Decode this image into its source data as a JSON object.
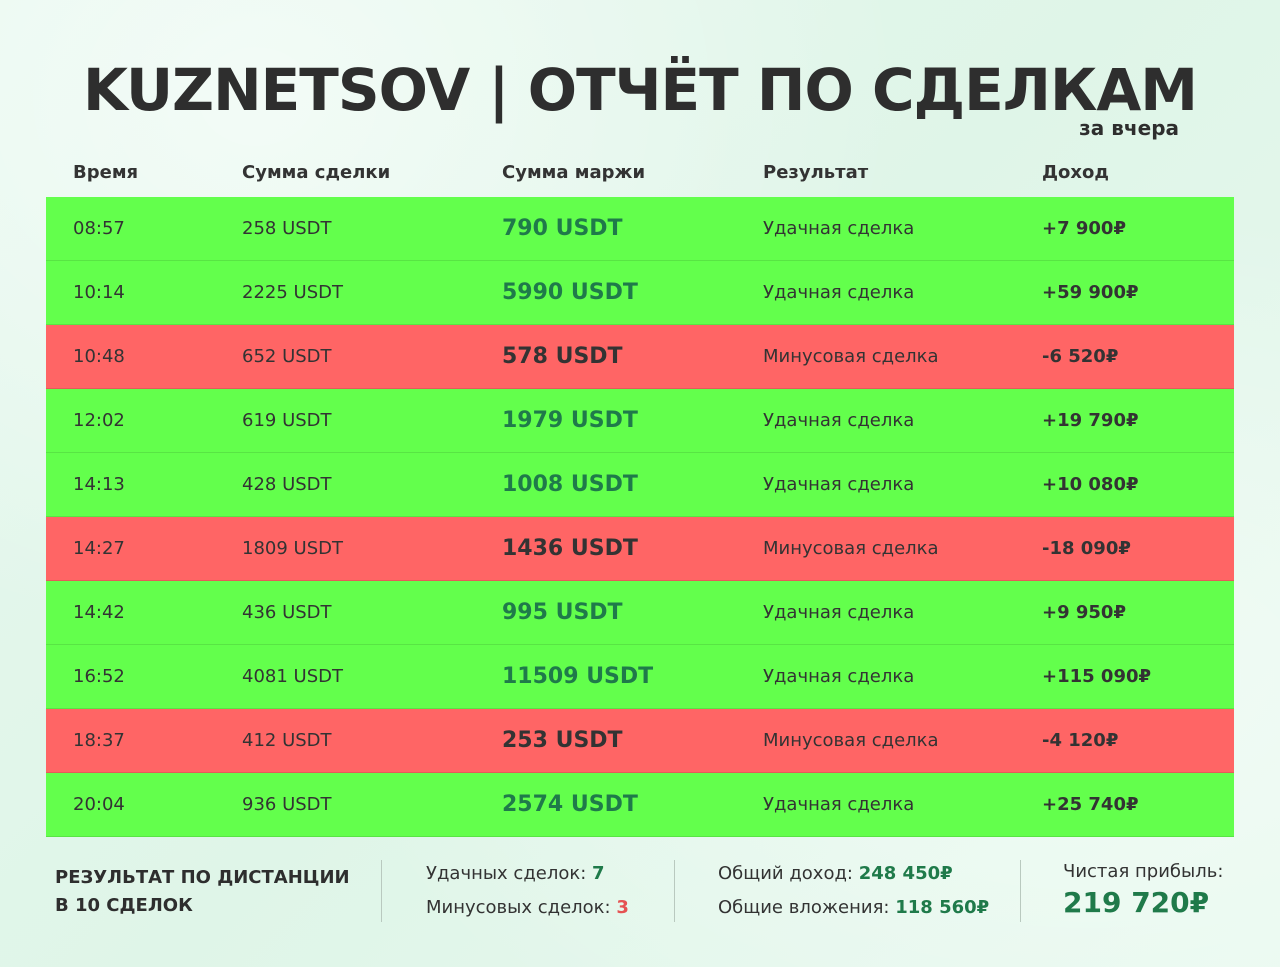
{
  "header": {
    "title": "KUZNETSOV | ОТЧЁТ ПО СДЕЛКАМ",
    "subtitle": "за вчера"
  },
  "table": {
    "columns": [
      "Время",
      "Сумма сделки",
      "Сумма маржи",
      "Результат",
      "Доход"
    ],
    "rows": [
      {
        "status": "win",
        "time": "08:57",
        "deal": "258 USDT",
        "margin": "790 USDT",
        "result": "Удачная сделка",
        "income": "+7 900₽"
      },
      {
        "status": "win",
        "time": "10:14",
        "deal": "2225 USDT",
        "margin": "5990 USDT",
        "result": "Удачная сделка",
        "income": "+59 900₽"
      },
      {
        "status": "loss",
        "time": "10:48",
        "deal": "652 USDT",
        "margin": "578 USDT",
        "result": "Минусовая сделка",
        "income": "-6 520₽"
      },
      {
        "status": "win",
        "time": "12:02",
        "deal": "619 USDT",
        "margin": "1979 USDT",
        "result": "Удачная сделка",
        "income": "+19 790₽"
      },
      {
        "status": "win",
        "time": "14:13",
        "deal": "428 USDT",
        "margin": "1008 USDT",
        "result": "Удачная сделка",
        "income": "+10 080₽"
      },
      {
        "status": "loss",
        "time": "14:27",
        "deal": "1809 USDT",
        "margin": "1436 USDT",
        "result": "Минусовая сделка",
        "income": "-18 090₽"
      },
      {
        "status": "win",
        "time": "14:42",
        "deal": "436 USDT",
        "margin": "995 USDT",
        "result": "Удачная сделка",
        "income": "+9 950₽"
      },
      {
        "status": "win",
        "time": "16:52",
        "deal": "4081 USDT",
        "margin": "11509 USDT",
        "result": "Удачная сделка",
        "income": "+115 090₽"
      },
      {
        "status": "loss",
        "time": "18:37",
        "deal": "412 USDT",
        "margin": "253 USDT",
        "result": "Минусовая сделка",
        "income": "-4 120₽"
      },
      {
        "status": "win",
        "time": "20:04",
        "deal": "936 USDT",
        "margin": "2574 USDT",
        "result": "Удачная сделка",
        "income": "+25 740₽"
      }
    ]
  },
  "summary": {
    "label_line1": "РЕЗУЛЬТАТ ПО ДИСТАНЦИИ",
    "label_line2": "В 10 СДЕЛОК",
    "wins_label": "Удачных сделок:",
    "wins_value": "7",
    "losses_label": "Минусовых сделок:",
    "losses_value": "3",
    "income_label": "Общий доход:",
    "income_value": "248 450₽",
    "invest_label": "Общие вложения:",
    "invest_value": "118 560₽",
    "profit_label": "Чистая прибыль:",
    "profit_value": "219 720₽"
  },
  "colors": {
    "win_row": "#63ff4c",
    "loss_row": "#ff6565",
    "accent_green": "#1f7a4a",
    "accent_red": "#e55252",
    "background": "#e3f7ec"
  }
}
